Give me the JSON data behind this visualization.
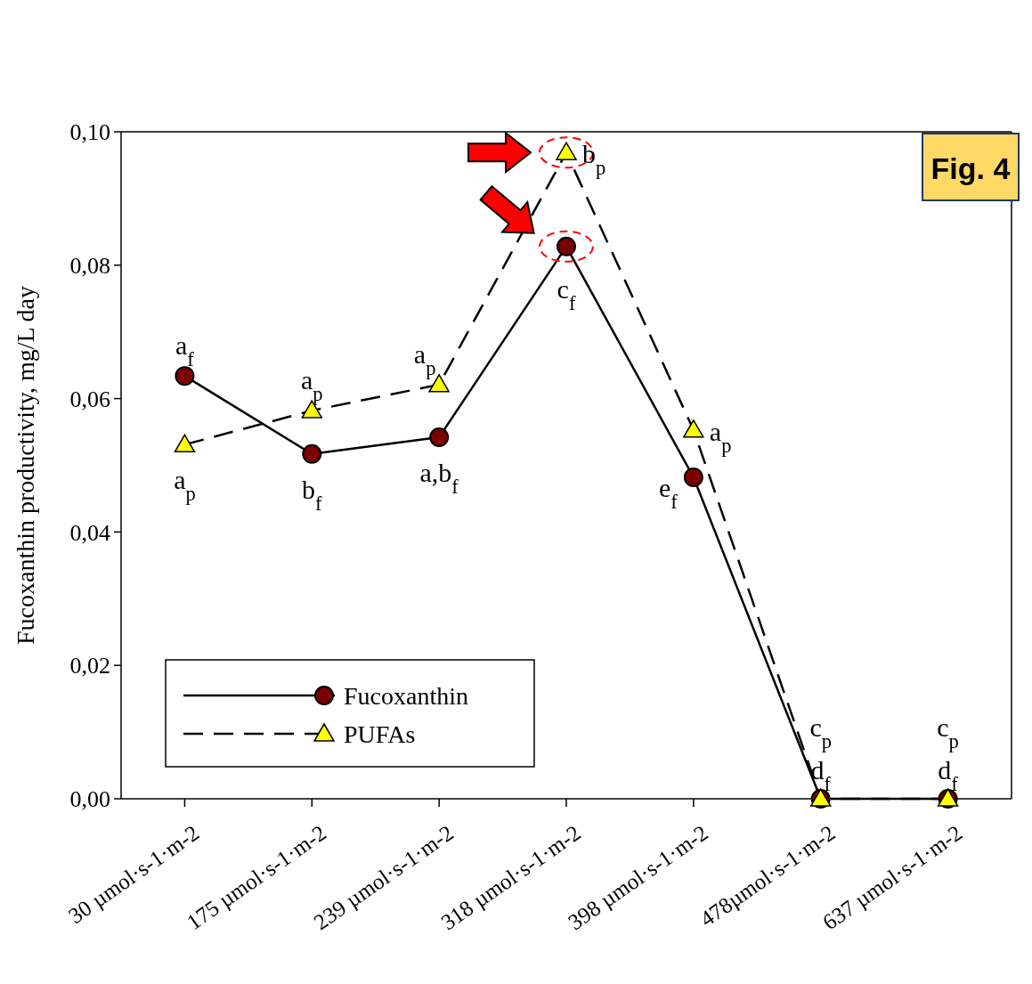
{
  "chart_data": {
    "type": "line",
    "ylabel": "Fucoxanthin productivity, mg/L day",
    "categories": [
      "30 µmol·s-1·m-2",
      "175 µmol·s-1·m-2",
      "239 µmol·s-1·m-2",
      "318 µmol·s-1·m-2",
      "398 µmol·s-1·m-2",
      "478µmol·s-1·m-2",
      "637 µmol·s-1·m-2"
    ],
    "series": [
      {
        "name": "Fucoxanthin",
        "color": "#7b0000",
        "marker": "circle",
        "line_style": "solid",
        "values": [
          0.0634,
          0.0517,
          0.0542,
          0.0828,
          0.0482,
          0,
          0
        ]
      },
      {
        "name": "PUFAs",
        "color": "#ffff00",
        "marker": "triangle",
        "line_style": "dashed",
        "values": [
          0.0531,
          0.0582,
          0.0621,
          0.0969,
          0.0553,
          0,
          0
        ]
      }
    ],
    "ylim": [
      0,
      0.1
    ],
    "yticks": [
      {
        "value": 0,
        "label": "0,00"
      },
      {
        "value": 0.02,
        "label": "0,02"
      },
      {
        "value": 0.04,
        "label": "0,04"
      },
      {
        "value": 0.06,
        "label": "0,06"
      },
      {
        "value": 0.08,
        "label": "0,08"
      },
      {
        "value": 0.1,
        "label": "0,10"
      }
    ],
    "legend": "bottom left",
    "grid": false,
    "annotations": [
      "Fig. 4",
      {
        "text": "a$_{f}$",
        "x": "30 µmol·s-1·m-2",
        "y": 0.0634
      },
      {
        "text": "a$_{p}$",
        "x": "30 µmol·s-1·m-2",
        "y": 0.0531
      },
      {
        "text": "a$_{p}$",
        "x": "175 µmol·s-1·m-2",
        "y": 0.0582
      },
      {
        "text": "b$_{f}$",
        "x": "175 µmol·s-1·m-2",
        "y": 0.0517
      },
      {
        "text": "a$_{p}$",
        "x": "239 µmol·s-1·m-2",
        "y": 0.0621
      },
      {
        "text": "a,b$_{f}$",
        "x": "239 µmol·s-1·m-2",
        "y": 0.0542
      },
      {
        "text": "b$_{p}$",
        "x": "318 µmol·s-1·m-2",
        "y": 0.0969
      },
      {
        "text": "c$_{f}$",
        "x": "318 µmol·s-1·m-2",
        "y": 0.0828
      },
      {
        "text": "a$_{p}$",
        "x": "398 µmol·s-1·m-2",
        "y": 0.0553
      },
      {
        "text": "e$_{f}$",
        "x": "398 µmol·s-1·m-2",
        "y": 0.0482
      },
      {
        "text": "c$_{p}$",
        "x": "478µmol·s-1·m-2",
        "y": 0
      },
      {
        "text": "d$_{f}$",
        "x": "478µmol·s-1·m-2",
        "y": 0
      },
      {
        "text": "c$_{p}$",
        "x": "637 µmol·s-1·m-2",
        "y": 0
      },
      {
        "text": "d$_{f}$",
        "x": "637 µmol·s-1·m-2",
        "y": 0
      }
    ]
  }
}
